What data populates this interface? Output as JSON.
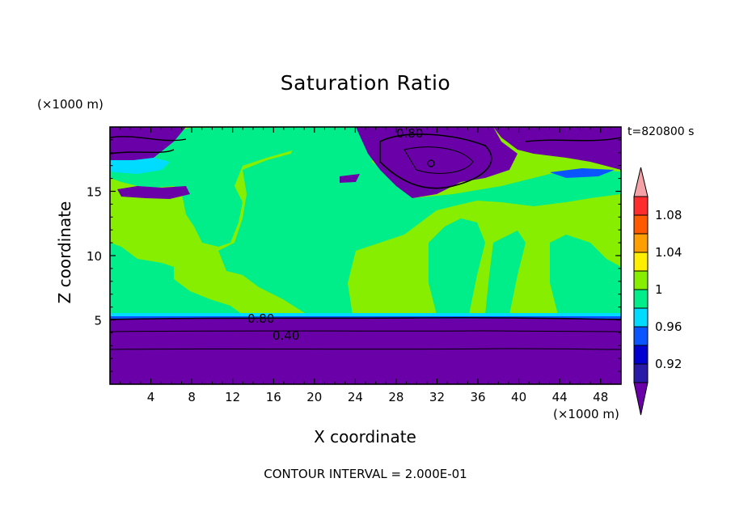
{
  "chart_data": {
    "type": "heatmap",
    "title": "Saturation Ratio",
    "xlabel": "X coordinate",
    "ylabel": "Z coordinate",
    "x_unit": "(×1000 m)",
    "y_unit": "(×1000 m)",
    "time_label": "t=820800 s",
    "footer": "CONTOUR INTERVAL = 2.000E-01",
    "xlim": [
      0,
      50
    ],
    "ylim": [
      0,
      20
    ],
    "x_ticks": [
      "4",
      "8",
      "12",
      "16",
      "20",
      "24",
      "28",
      "32",
      "36",
      "40",
      "44",
      "48"
    ],
    "y_ticks": [
      "5",
      "10",
      "15"
    ],
    "colorbar": {
      "labels": [
        "1.08",
        "1.04",
        "1",
        "0.96",
        "0.92"
      ],
      "colors": [
        "#6a00a8",
        "#2a1aa8",
        "#0000d0",
        "#0a55ff",
        "#00dcff",
        "#00ee8a",
        "#88ee00",
        "#ffee00",
        "#ff9e00",
        "#ff5a00",
        "#ff2d2d",
        "#f3a3a8"
      ]
    },
    "contour_labels": [
      "0.80",
      "0.80",
      "0.40"
    ]
  }
}
